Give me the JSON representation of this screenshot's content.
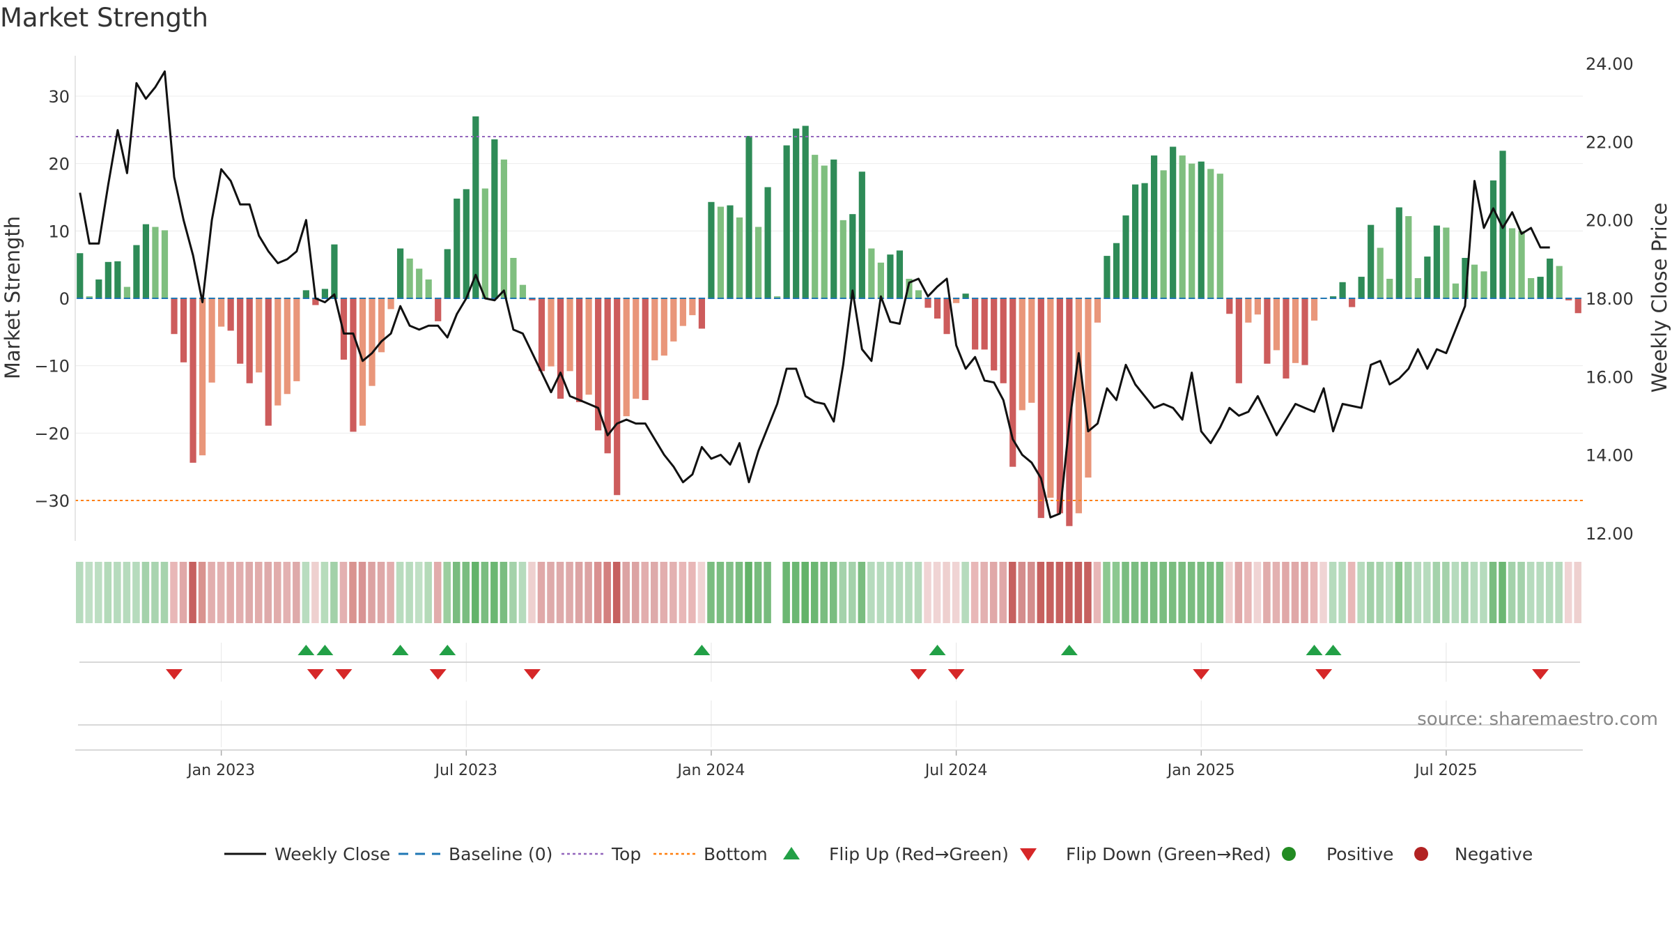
{
  "title": "Market Strength",
  "source": "source: sharemaestro.com",
  "chart_data": {
    "type": "bar",
    "title": "Market Strength",
    "ylabel_left": "Market Strength",
    "ylabel_right": "Weekly Close Price",
    "ylim_left": [
      -36,
      36
    ],
    "ylim_right": [
      11.8,
      24.2
    ],
    "yticks_left": [
      30,
      20,
      10,
      0,
      -10,
      -20,
      -30
    ],
    "yticks_left_labels": [
      "30",
      "20",
      "10",
      "0",
      "−10",
      "−20",
      "−30"
    ],
    "yticks_right": [
      24,
      22,
      20,
      18,
      16,
      14,
      12
    ],
    "yticks_right_labels": [
      "24.00",
      "22.00",
      "20.00",
      "18.00",
      "16.00",
      "14.00",
      "12.00"
    ],
    "x_date_ticks": [
      {
        "index": 15,
        "label": "Jan 2023"
      },
      {
        "index": 41,
        "label": "Jul 2023"
      },
      {
        "index": 67,
        "label": "Jan 2024"
      },
      {
        "index": 93,
        "label": "Jul 2024"
      },
      {
        "index": 119,
        "label": "Jan 2025"
      },
      {
        "index": 145,
        "label": "Jul 2025"
      }
    ],
    "top_threshold": 24,
    "bottom_threshold": -30,
    "baseline": 0,
    "strength": [
      6.7,
      0.3,
      2.8,
      5.4,
      5.5,
      1.7,
      7.9,
      11,
      10.6,
      10.1,
      -5.3,
      -9.5,
      -24.4,
      -23.3,
      -12.5,
      -4.2,
      -4.8,
      -9.7,
      -12.6,
      -11,
      -18.9,
      -15.9,
      -14.2,
      -12.3,
      1.2,
      -1,
      1.4,
      8,
      -9.1,
      -19.8,
      -18.9,
      -13,
      -8,
      -1.6,
      7.4,
      5.9,
      4.4,
      2.8,
      -3.4,
      7.3,
      14.8,
      16.2,
      27,
      16.3,
      23.6,
      20.6,
      6,
      2,
      -0.3,
      -10.8,
      -10.1,
      -14.9,
      -10.8,
      -15.4,
      -14.3,
      -19.6,
      -23,
      -29.2,
      -17.5,
      -14.9,
      -15.1,
      -9.2,
      -8.5,
      -6.4,
      -4.1,
      -2.5,
      -4.5,
      14.3,
      13.6,
      13.8,
      12,
      24.1,
      10.6,
      16.5,
      0.3,
      22.7,
      25.2,
      25.6,
      21.3,
      19.7,
      20.6,
      11.6,
      12.5,
      18.8,
      7.4,
      5.3,
      6.5,
      7.1,
      2.9,
      1.2,
      -1.4,
      -3,
      -5.3,
      -0.7,
      0.7,
      -7.6,
      -7.6,
      -10.7,
      -12.6,
      -25,
      -16.6,
      -15.5,
      -32.6,
      -29.6,
      -31.9,
      -33.8,
      -31.9,
      -26.6,
      -3.6,
      6.3,
      8.2,
      12.3,
      16.9,
      17.1,
      21.2,
      19,
      22.5,
      21.2,
      20,
      20.3,
      19.2,
      18.5,
      -2.3,
      -12.6,
      -3.6,
      -2.4,
      -9.7,
      -7.7,
      -11.9,
      -9.6,
      -9.9,
      -3.3,
      0.1,
      0.3,
      2.4,
      -1.3,
      3.2,
      10.9,
      7.5,
      2.9,
      13.5,
      12.2,
      3,
      6.2,
      10.8,
      10.5,
      2.2,
      6,
      5,
      4,
      17.5,
      21.9,
      10.4,
      10,
      3,
      3.2,
      5.9,
      4.8,
      -0.3,
      -2.2
    ],
    "close": [
      20.7,
      19.4,
      19.4,
      20.9,
      22.3,
      21.2,
      23.5,
      23.1,
      23.4,
      23.8,
      21.1,
      20,
      19.1,
      17.9,
      20,
      21.3,
      21,
      20.4,
      20.4,
      19.6,
      19.2,
      18.9,
      19,
      19.2,
      20,
      18,
      17.9,
      18.1,
      17.1,
      17.1,
      16.4,
      16.6,
      16.9,
      17.1,
      17.8,
      17.3,
      17.2,
      17.3,
      17.3,
      17.0,
      17.6,
      18,
      18.6,
      18,
      17.95,
      18.2,
      17.2,
      17.1,
      16.6,
      16.1,
      15.6,
      16.1,
      15.5,
      15.4,
      15.3,
      15.2,
      14.5,
      14.8,
      14.9,
      14.8,
      14.8,
      14.4,
      14,
      13.7,
      13.3,
      13.5,
      14.2,
      13.9,
      14.0,
      13.75,
      14.3,
      13.3,
      14.1,
      14.7,
      15.3,
      16.2,
      16.2,
      15.5,
      15.35,
      15.3,
      14.85,
      16.3,
      18.2,
      16.7,
      16.4,
      18.05,
      17.4,
      17.35,
      18.4,
      18.5,
      18.05,
      18.3,
      18.5,
      16.8,
      16.2,
      16.5,
      15.9,
      15.85,
      15.4,
      14.4,
      14,
      13.8,
      13.4,
      12.4,
      12.5,
      14.8,
      16.6,
      14.6,
      14.8,
      15.7,
      15.4,
      16.3,
      15.8,
      15.5,
      15.2,
      15.3,
      15.2,
      14.9,
      16.1,
      14.6,
      14.3,
      14.7,
      15.2,
      15,
      15.1,
      15.5,
      15,
      14.5,
      14.9,
      15.3,
      15.2,
      15.1,
      15.7,
      14.6,
      15.3,
      15.25,
      15.2,
      16.3,
      16.4,
      15.8,
      15.95,
      16.2,
      16.7,
      16.2,
      16.7,
      16.6,
      17.2,
      17.8,
      21,
      19.8,
      20.3,
      19.8,
      20.2,
      19.65,
      19.8,
      19.3,
      19.3
    ],
    "strip_shades": [
      "#b6dbbd",
      "#bfdfc5",
      "#bcdec2",
      "#b3dab9",
      "#b6dbbd",
      "#b6dbbd",
      "#b6dbbd",
      "#a4d2ab",
      "#a9d4b0",
      "#a6d3ad",
      "#e8b7b7",
      "#e0a8a8",
      "#c6605f",
      "#d9938f",
      "#e2aeae",
      "#e3b1b1",
      "#e1acab",
      "#e2aeae",
      "#deaaaa",
      "#e1acab",
      "#deaaaa",
      "#e1acab",
      "#e3b1b1",
      "#deaaaa",
      "#b9dcbf",
      "#eed0cf",
      "#b7dcbc",
      "#a2d1a9",
      "#e3b1b1",
      "#d9938f",
      "#d89494",
      "#dca3a3",
      "#dea8a8",
      "#e2aeae",
      "#b8dcbe",
      "#b8dcbe",
      "#c0e0c5",
      "#b4dab8",
      "#e1acab",
      "#9bce9f",
      "#79bc7f",
      "#7abd80",
      "#63b36a",
      "#7abd80",
      "#6bb772",
      "#7abd80",
      "#a4d2aa",
      "#b6dbbd",
      "#eed0cf",
      "#e0a8a8",
      "#deaaaa",
      "#deaaaa",
      "#deaaaa",
      "#dca3a3",
      "#dca3a3",
      "#d99090",
      "#d3807f",
      "#c6605f",
      "#dca3a3",
      "#dca3a3",
      "#e2aeae",
      "#deaaaa",
      "#e2aeae",
      "#e3b1b1",
      "#e8b7b7",
      "#e8b7b7",
      "#f0d4d4",
      "#7abd80",
      "#7abd80",
      "#82c088",
      "#7abd80",
      "#62b268",
      "#77bb7d",
      "#77bb7d",
      "#ffffff",
      "#6bb772",
      "#6bb772",
      "#63b36a",
      "#6bb772",
      "#7abd80",
      "#7abd80",
      "#a4d2ab",
      "#a4d2ab",
      "#7abd80",
      "#b6dbbd",
      "#b6dbbd",
      "#b6dbbd",
      "#b6dbbd",
      "#b6dbbd",
      "#b6dbbd",
      "#f0d4d4",
      "#f0d4d4",
      "#eed0cf",
      "#f0d4d4",
      "#b6dbbd",
      "#e8b7b7",
      "#e3b1b1",
      "#e0a8a8",
      "#e0a8a8",
      "#c6605f",
      "#d48d8d",
      "#d48d8d",
      "#c6605f",
      "#c6605f",
      "#c6605f",
      "#c6605f",
      "#c6605f",
      "#c6605f",
      "#e8b7b7",
      "#8cc890",
      "#8cc890",
      "#7abd80",
      "#7abd80",
      "#7abd80",
      "#7abd80",
      "#7abd80",
      "#7abd80",
      "#7abd80",
      "#7abd80",
      "#7abd80",
      "#7abd80",
      "#7abd80",
      "#eed0cf",
      "#e0a8a8",
      "#e8b7b7",
      "#f0d4d4",
      "#e1acab",
      "#e3b1b1",
      "#e0a8a8",
      "#e0a8a8",
      "#e0a8a8",
      "#e8b7b7",
      "#f0d4d4",
      "#b6dbbd",
      "#b6dbbd",
      "#e8b7b7",
      "#b6dbbd",
      "#a2d1a9",
      "#a8d4ae",
      "#b6dbbd",
      "#8cc890",
      "#a4d2ab",
      "#b6dbbd",
      "#b6dbbd",
      "#a4d2ab",
      "#a4d2ab",
      "#b6dbbd",
      "#a4d2ab",
      "#b6dbbd",
      "#b6dbbd",
      "#7abd80",
      "#6bb772",
      "#a4d2ab",
      "#a4d2ab",
      "#b6dbbd",
      "#b6dbbd",
      "#b6dbbd",
      "#b6dbbd",
      "#f0d4d4",
      "#eed0cf"
    ],
    "flip_up_indices": [
      24,
      26,
      34,
      39,
      66,
      91,
      105,
      131,
      133
    ],
    "flip_down_indices": [
      10,
      25,
      28,
      38,
      48,
      89,
      93,
      119,
      132,
      155
    ],
    "legend": [
      {
        "key": "close",
        "label": "Weekly Close"
      },
      {
        "key": "baseline",
        "label": "Baseline (0)"
      },
      {
        "key": "top",
        "label": "Top"
      },
      {
        "key": "bottom",
        "label": "Bottom"
      },
      {
        "key": "flipup",
        "label": "Flip Up (Red→Green)"
      },
      {
        "key": "flipdown",
        "label": "Flip Down (Green→Red)"
      },
      {
        "key": "positive",
        "label": "Positive"
      },
      {
        "key": "negative",
        "label": "Negative"
      }
    ],
    "colors": {
      "pos_dark": "#2e8b57",
      "pos_light": "#7fbf7f",
      "neg_dark": "#cd5c5c",
      "neg_light": "#e9967a",
      "close_line": "#111111",
      "baseline": "#1f77b4",
      "top": "#9467bd",
      "bottom": "#ff7f0e",
      "flip_up": "#22a046",
      "flip_down": "#d62728",
      "positive": "#228b22",
      "negative": "#b22222"
    }
  }
}
